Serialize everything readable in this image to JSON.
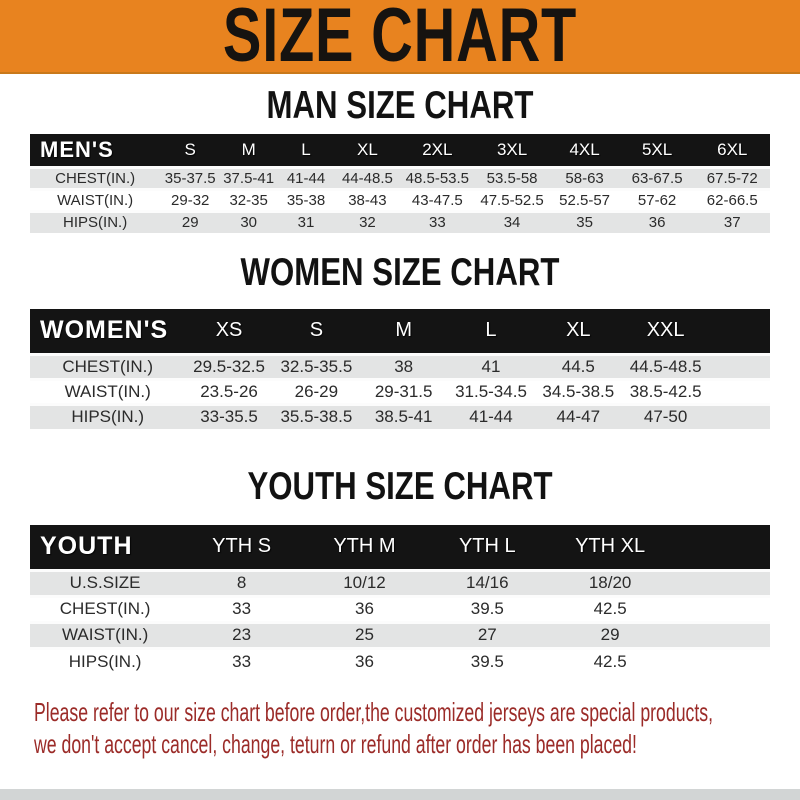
{
  "banner": {
    "title": "SIZE CHART"
  },
  "colors": {
    "banner_bg": "#E8831F",
    "banner_text": "#161310",
    "header_bar_bg": "#141414",
    "header_bar_text": "#FFFFFF",
    "row_alt_bg": "#E3E4E4",
    "body_text": "#2B2B2B",
    "footer_text": "#9B2B28",
    "bottom_bar": "#D2D5D5"
  },
  "sections": {
    "man": {
      "heading": "MAN SIZE CHART"
    },
    "women": {
      "heading": "WOMEN SIZE CHART"
    },
    "youth": {
      "heading": "YOUTH SIZE CHART"
    }
  },
  "tables": {
    "men": {
      "header": [
        "MEN'S",
        "S",
        "M",
        "L",
        "XL",
        "2XL",
        "3XL",
        "4XL",
        "5XL",
        "6XL"
      ],
      "rows": [
        [
          "CHEST(IN.)",
          "35-37.5",
          "37.5-41",
          "41-44",
          "44-48.5",
          "48.5-53.5",
          "53.5-58",
          "58-63",
          "63-67.5",
          "67.5-72"
        ],
        [
          "WAIST(IN.)",
          "29-32",
          "32-35",
          "35-38",
          "38-43",
          "43-47.5",
          "47.5-52.5",
          "52.5-57",
          "57-62",
          "62-66.5"
        ],
        [
          "HIPS(IN.)",
          "29",
          "30",
          "31",
          "32",
          "33",
          "34",
          "35",
          "36",
          "37"
        ]
      ]
    },
    "women": {
      "header": [
        "WOMEN'S",
        "XS",
        "S",
        "M",
        "L",
        "XL",
        "XXL"
      ],
      "rows": [
        [
          "CHEST(IN.)",
          "29.5-32.5",
          "32.5-35.5",
          "38",
          "41",
          "44.5",
          "44.5-48.5"
        ],
        [
          "WAIST(IN.)",
          "23.5-26",
          "26-29",
          "29-31.5",
          "31.5-34.5",
          "34.5-38.5",
          "38.5-42.5"
        ],
        [
          "HIPS(IN.)",
          "33-35.5",
          "35.5-38.5",
          "38.5-41",
          "41-44",
          "44-47",
          "47-50"
        ]
      ]
    },
    "youth": {
      "header": [
        "YOUTH",
        "YTH S",
        "YTH M",
        "YTH L",
        "YTH XL"
      ],
      "rows": [
        [
          "U.S.SIZE",
          "8",
          "10/12",
          "14/16",
          "18/20"
        ],
        [
          "CHEST(IN.)",
          "33",
          "36",
          "39.5",
          "42.5"
        ],
        [
          "WAIST(IN.)",
          "23",
          "25",
          "27",
          "29"
        ],
        [
          "HIPS(IN.)",
          "33",
          "36",
          "39.5",
          "42.5"
        ]
      ]
    }
  },
  "footer": {
    "line1": "Please refer to our size chart before order,the customized jerseys are special products,",
    "line2": "we don't accept cancel, change, teturn or refund after order has been placed!"
  }
}
